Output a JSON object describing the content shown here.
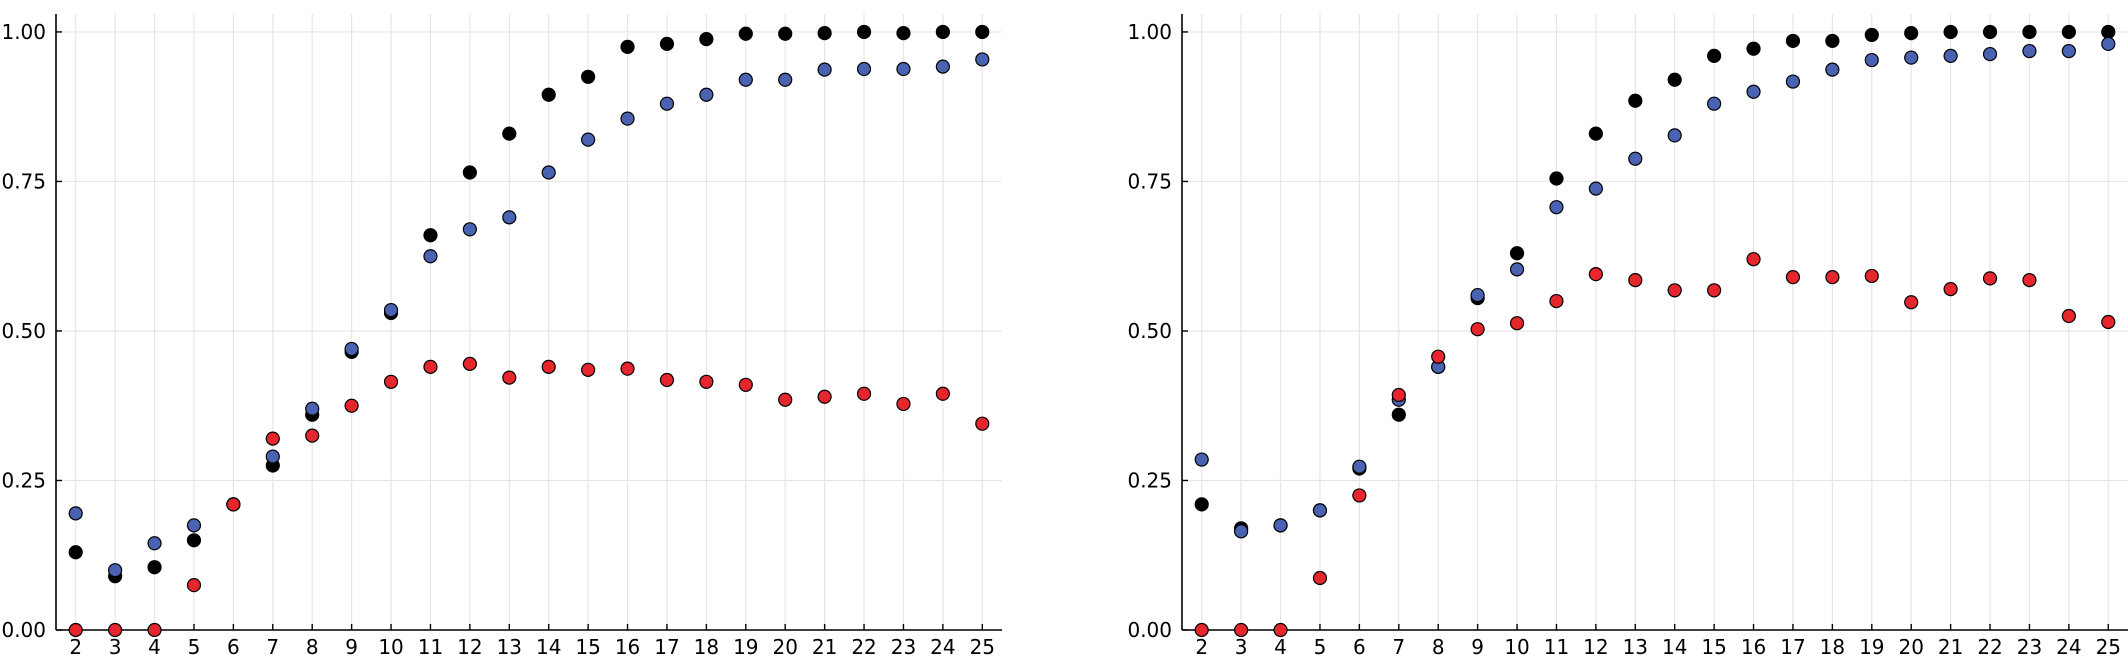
{
  "chart_data": [
    {
      "type": "scatter",
      "x": [
        2,
        3,
        4,
        5,
        6,
        7,
        8,
        9,
        10,
        11,
        12,
        13,
        14,
        15,
        16,
        17,
        18,
        19,
        20,
        21,
        22,
        23,
        24,
        25
      ],
      "xlim": [
        1.5,
        25.5
      ],
      "ylim": [
        0,
        1.03
      ],
      "yticks": [
        0,
        0.25,
        0.5,
        0.75,
        1.0
      ],
      "ytick_labels": [
        "0.00",
        "0.25",
        "0.50",
        "0.75",
        "1.00"
      ],
      "grid": true,
      "legend": "none",
      "series": [
        {
          "color": "#000000",
          "values": [
            0.13,
            0.09,
            0.105,
            0.15,
            0.21,
            0.275,
            0.36,
            0.465,
            0.53,
            0.66,
            0.765,
            0.83,
            0.895,
            0.925,
            0.975,
            0.98,
            0.988,
            0.997,
            0.997,
            0.998,
            1.0,
            0.998,
            1.0,
            1.0
          ]
        },
        {
          "color": "#4a62b2",
          "values": [
            0.195,
            0.1,
            0.145,
            0.175,
            0.21,
            0.29,
            0.37,
            0.47,
            0.535,
            0.625,
            0.67,
            0.69,
            0.765,
            0.82,
            0.855,
            0.88,
            0.895,
            0.92,
            0.92,
            0.937,
            0.938,
            0.938,
            0.942,
            0.954
          ]
        },
        {
          "color": "#e5262d",
          "values": [
            0.0,
            0.0,
            0.0,
            0.075,
            0.21,
            0.32,
            0.325,
            0.375,
            0.415,
            0.44,
            0.445,
            0.422,
            0.44,
            0.435,
            0.437,
            0.418,
            0.415,
            0.41,
            0.385,
            0.39,
            0.395,
            0.378,
            0.395,
            0.345
          ]
        }
      ]
    },
    {
      "type": "scatter",
      "x": [
        2,
        3,
        4,
        5,
        6,
        7,
        8,
        9,
        10,
        11,
        12,
        13,
        14,
        15,
        16,
        17,
        18,
        19,
        20,
        21,
        22,
        23,
        24,
        25
      ],
      "xlim": [
        1.5,
        25.5
      ],
      "ylim": [
        0,
        1.03
      ],
      "yticks": [
        0,
        0.25,
        0.5,
        0.75,
        1.0
      ],
      "ytick_labels": [
        "0.00",
        "0.25",
        "0.50",
        "0.75",
        "1.00"
      ],
      "grid": true,
      "legend": "none",
      "series": [
        {
          "color": "#000000",
          "values": [
            0.21,
            0.17,
            0.175,
            0.2,
            0.27,
            0.36,
            0.44,
            0.555,
            0.63,
            0.755,
            0.83,
            0.885,
            0.92,
            0.96,
            0.972,
            0.985,
            0.985,
            0.995,
            0.998,
            1.0,
            1.0,
            1.0,
            1.0,
            1.0
          ]
        },
        {
          "color": "#4a62b2",
          "values": [
            0.285,
            0.165,
            0.175,
            0.2,
            0.273,
            0.385,
            0.44,
            0.56,
            0.603,
            0.707,
            0.738,
            0.788,
            0.827,
            0.88,
            0.9,
            0.917,
            0.937,
            0.953,
            0.957,
            0.96,
            0.963,
            0.968,
            0.968,
            0.98
          ]
        },
        {
          "color": "#e5262d",
          "values": [
            0.0,
            0.0,
            0.0,
            0.087,
            0.225,
            0.393,
            0.457,
            0.503,
            0.513,
            0.55,
            0.595,
            0.585,
            0.568,
            0.568,
            0.62,
            0.59,
            0.59,
            0.592,
            0.548,
            0.57,
            0.588,
            0.585,
            0.525,
            0.515
          ]
        }
      ]
    }
  ]
}
